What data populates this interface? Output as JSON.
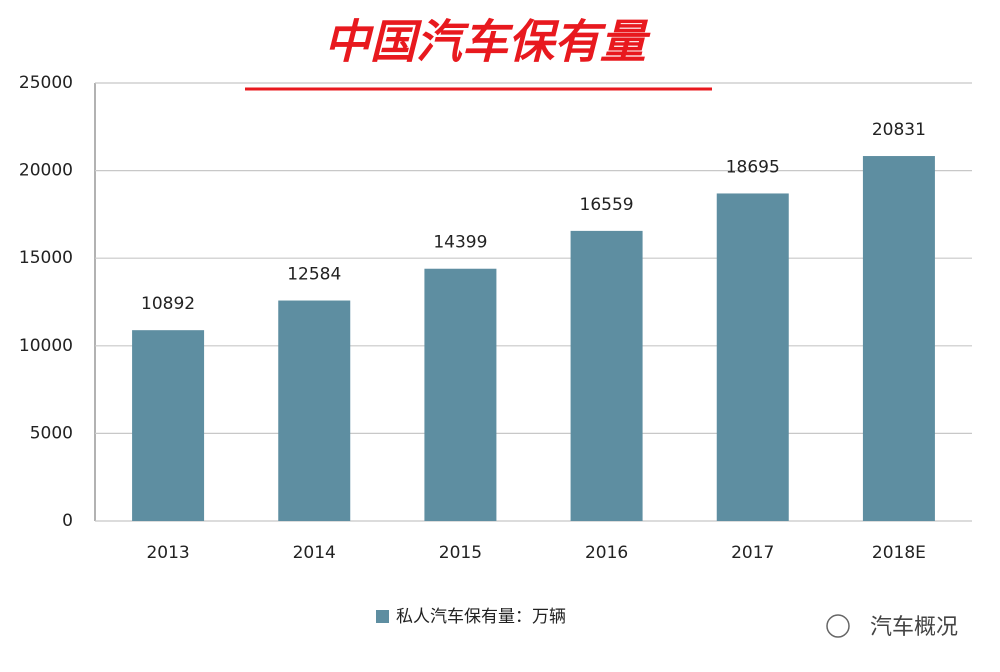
{
  "chart_data": {
    "type": "bar",
    "title": "中国汽车保有量",
    "categories": [
      "2013",
      "2014",
      "2015",
      "2016",
      "2017",
      "2018E"
    ],
    "series": [
      {
        "name": "私人汽车保有量：万辆",
        "color": "#5e8ea1",
        "values": [
          10892,
          12584,
          14399,
          16559,
          18695,
          20831
        ]
      }
    ],
    "ylim": [
      0,
      25000
    ],
    "yticks": [
      0,
      5000,
      10000,
      15000,
      20000,
      25000
    ],
    "grid": true,
    "data_labels": true,
    "legend": "bottom"
  },
  "watermark": "汽车概况"
}
